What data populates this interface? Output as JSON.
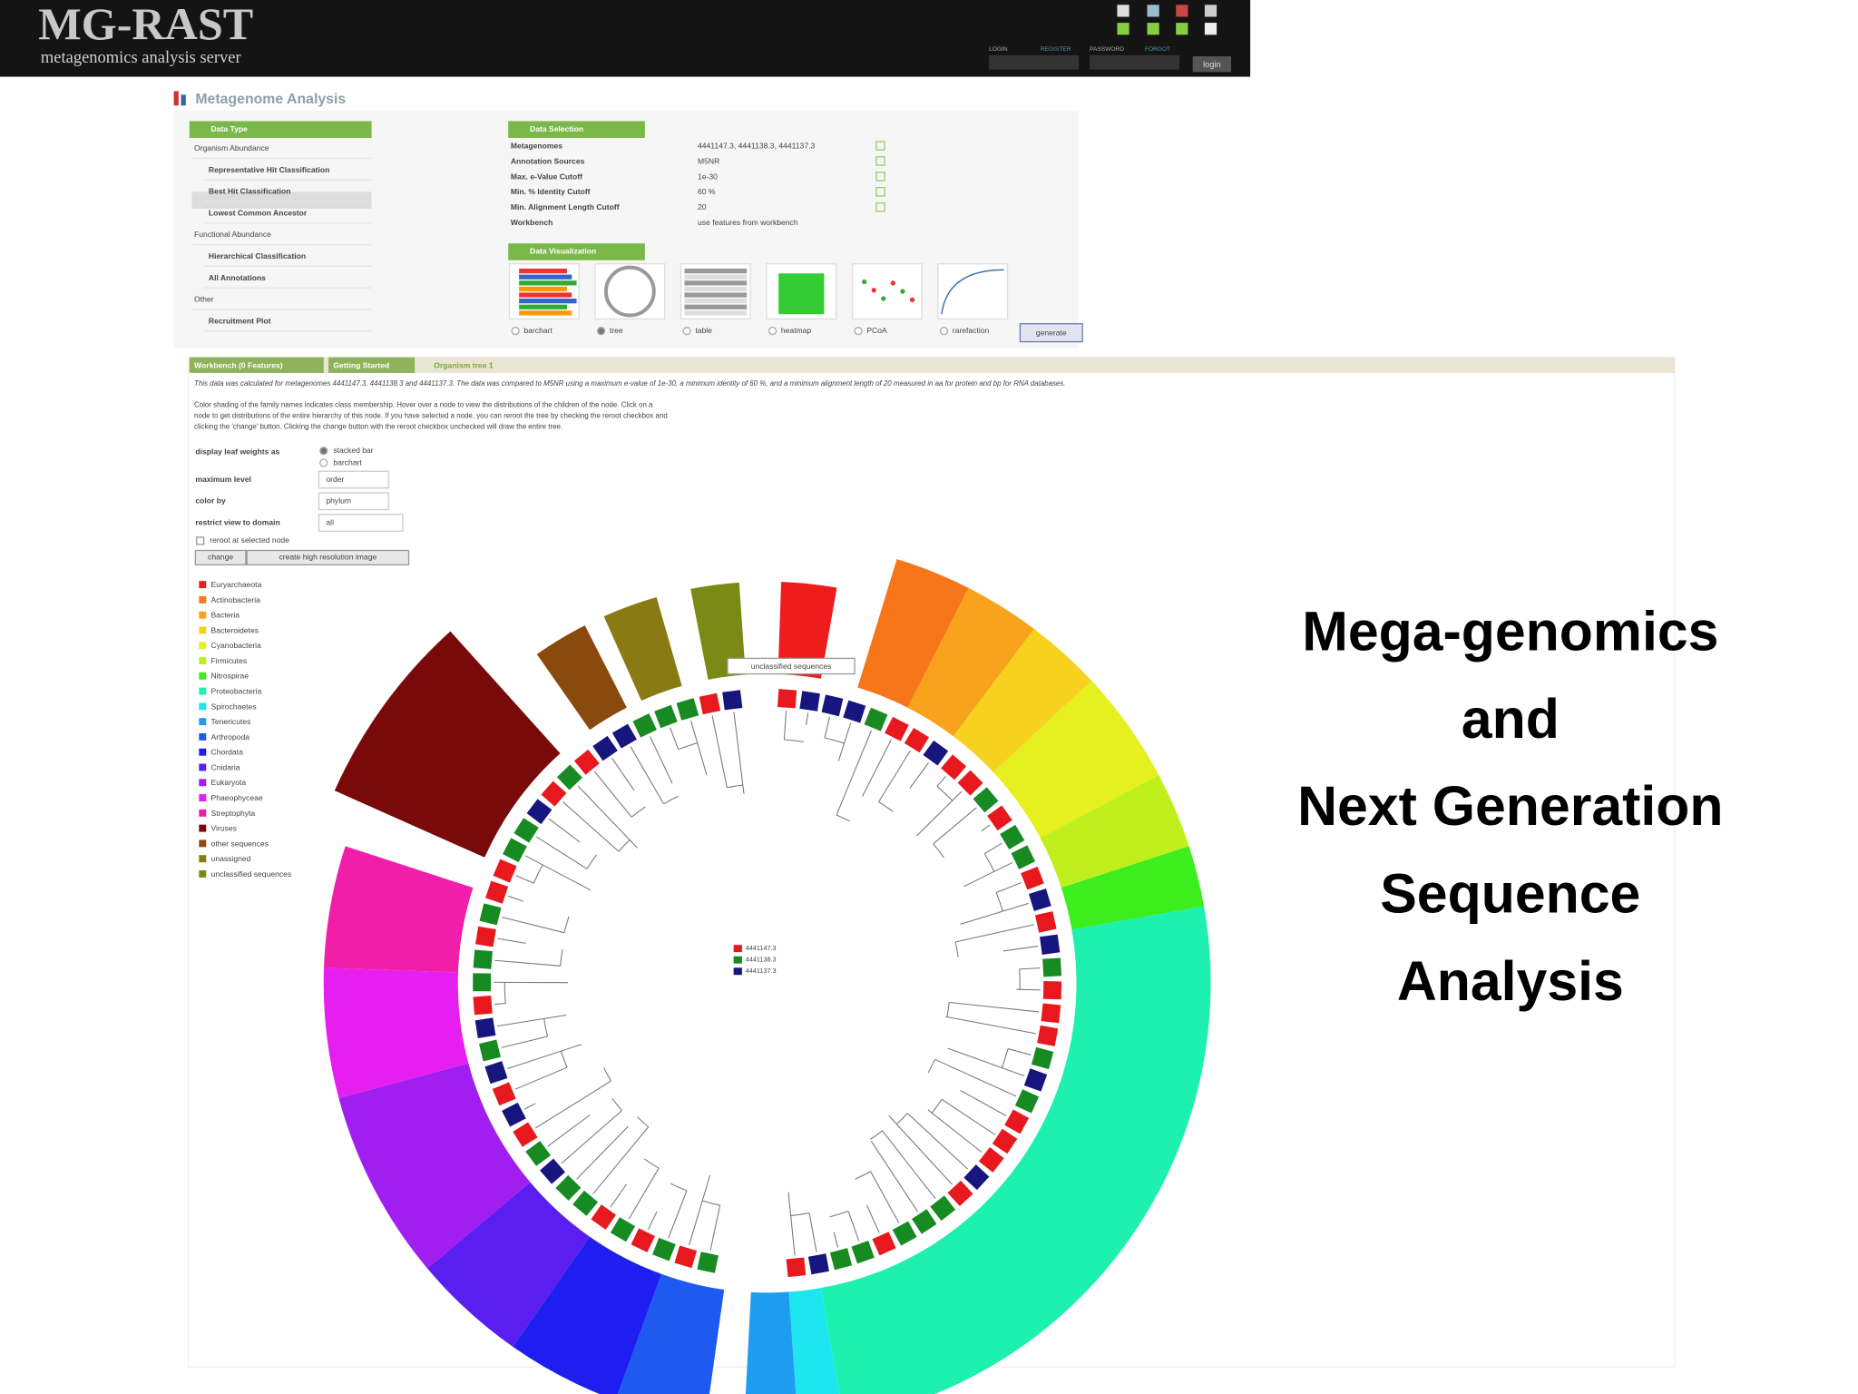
{
  "header": {
    "logo": "MG-RAST",
    "tagline": "metagenomics analysis server",
    "login_labels": [
      "LOGIN",
      "REGISTER",
      "PASSWORD",
      "FORGOT"
    ],
    "login_button": "login"
  },
  "page_title": "Metagenome Analysis",
  "data_type": {
    "title": "Data Type",
    "groups": [
      {
        "heading": "Organism Abundance",
        "items": [
          "Representative Hit Classification",
          "Best Hit Classification",
          "Lowest Common Ancestor"
        ]
      },
      {
        "heading": "Functional Abundance",
        "items": [
          "Hierarchical Classification",
          "All Annotations"
        ]
      },
      {
        "heading": "Other",
        "items": [
          "Recruitment Plot"
        ]
      }
    ]
  },
  "data_selection": {
    "title": "Data Selection",
    "rows": [
      [
        "Metagenomes",
        "4441147.3, 4441138.3, 4441137.3"
      ],
      [
        "Annotation Sources",
        "M5NR"
      ],
      [
        "Max. e-Value Cutoff",
        "1e-30"
      ],
      [
        "Min. % Identity Cutoff",
        "60 %"
      ],
      [
        "Min. Alignment Length Cutoff",
        "20"
      ],
      [
        "Workbench",
        "use features from workbench"
      ]
    ]
  },
  "data_visualization": {
    "title": "Data Visualization",
    "options": [
      "barchart",
      "tree",
      "table",
      "heatmap",
      "PCoA",
      "rarefaction"
    ],
    "button": "generate"
  },
  "tabs": [
    "Workbench (0 Features)",
    "Getting Started",
    "Organism tree 1"
  ],
  "description": [
    "This data was calculated for metagenomes 4441147.3, 4441138.3 and 4441137.3. The data was compared to M5NR using a maximum e-value of 1e-30, a minimum identity of 60 %, and a minimum alignment length of 20 measured in aa for protein and bp for RNA databases.",
    "Color shading of the family names indicates class membership. Hover over a node to view the distributions of the children of the node. Click on a",
    "node to get distributions of the entire hierarchy of this node. If you have selected a node, you can reroot the tree by checking the reroot checkbox and",
    "clicking the 'change' button. Clicking the change button with the reroot checkbox unchecked will draw the entire tree."
  ],
  "controls": {
    "leaf_weights": {
      "label": "display leaf weights as",
      "options": [
        "stacked bar",
        "barchart"
      ]
    },
    "fields": [
      {
        "label": "maximum level",
        "value": "order"
      },
      {
        "label": "color by",
        "value": "phylum"
      },
      {
        "label": "restrict view to domain",
        "value": "all"
      }
    ],
    "checkbox": "reroot at selected node",
    "buttons": [
      "change",
      "create high resolution image"
    ]
  },
  "legend": [
    {
      "name": "Euryarchaeota",
      "color": "#ee1c1c"
    },
    {
      "name": "Actinobacteria",
      "color": "#f7761a"
    },
    {
      "name": "Bacteria",
      "color": "#f9a21c"
    },
    {
      "name": "Bacteroidetes",
      "color": "#f6d21e"
    },
    {
      "name": "Cyanobacteria",
      "color": "#e6f01e"
    },
    {
      "name": "Firmicutes",
      "color": "#bff01e"
    },
    {
      "name": "Nitrospirae",
      "color": "#3cee1e"
    },
    {
      "name": "Proteobacteria",
      "color": "#1ef0b0"
    },
    {
      "name": "Spirochaetes",
      "color": "#1ee6f0"
    },
    {
      "name": "Tenericutes",
      "color": "#1e9cf0"
    },
    {
      "name": "Arthropoda",
      "color": "#1e5af0"
    },
    {
      "name": "Chordata",
      "color": "#1e1ef0"
    },
    {
      "name": "Cnidaria",
      "color": "#5a1ef0"
    },
    {
      "name": "Eukaryota",
      "color": "#a01ef0"
    },
    {
      "name": "Phaeophyceae",
      "color": "#e61ef0"
    },
    {
      "name": "Streptophyta",
      "color": "#f01ea8"
    },
    {
      "name": "Viruses",
      "color": "#7a0a0a"
    },
    {
      "name": "other sequences",
      "color": "#8a4a0e"
    },
    {
      "name": "unassigned",
      "color": "#8a7a14"
    },
    {
      "name": "unclassified sequences",
      "color": "#7a8a14"
    }
  ],
  "tree": {
    "tooltip": "unclassified sequences",
    "samples": [
      {
        "name": "4441147.3",
        "color": "#e8191e"
      },
      {
        "name": "4441138.3",
        "color": "#178a22"
      },
      {
        "name": "4441137.3",
        "color": "#16167e"
      }
    ]
  },
  "slide_title": [
    "Mega-genomics",
    "and",
    "Next Generation",
    "Sequence",
    "Analysis"
  ]
}
